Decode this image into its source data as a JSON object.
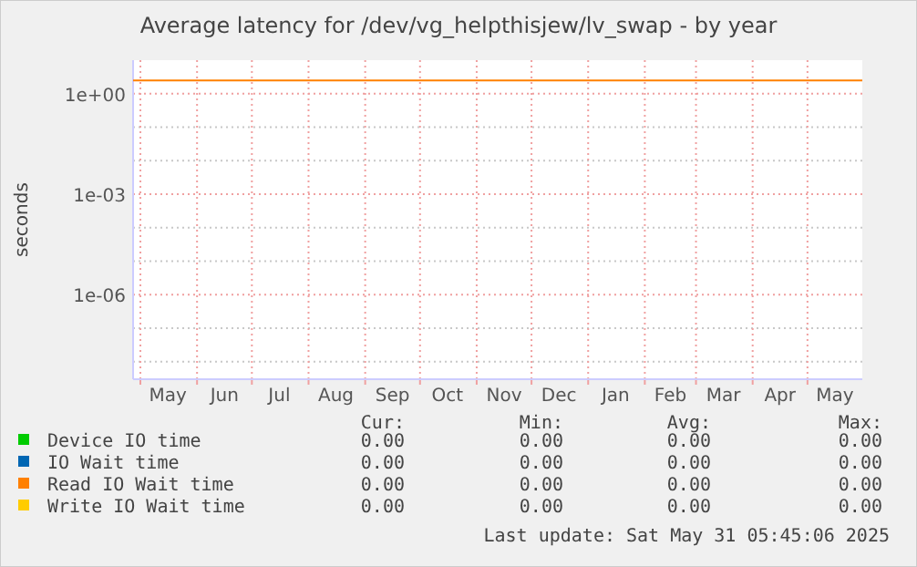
{
  "chart_data": {
    "type": "line",
    "title": "Average latency for /dev/vg_helpthisjew/lv_swap - by year",
    "ylabel": "seconds",
    "log": "y",
    "grid": true,
    "legend": "bottom",
    "x": [
      "2024-04-27",
      "2025-05-31"
    ],
    "xlim": [
      "2024-04-27",
      "2025-05-31"
    ],
    "xticks": [
      {
        "value": "2024-05-01",
        "label": null
      },
      {
        "value": "2024-05-16",
        "label": "May"
      },
      {
        "value": "2024-06-01",
        "label": null
      },
      {
        "value": "2024-06-16",
        "label": "Jun"
      },
      {
        "value": "2024-07-01",
        "label": null
      },
      {
        "value": "2024-07-16",
        "label": "Jul"
      },
      {
        "value": "2024-08-01",
        "label": null
      },
      {
        "value": "2024-08-16",
        "label": "Aug"
      },
      {
        "value": "2024-09-01",
        "label": null
      },
      {
        "value": "2024-09-16",
        "label": "Sep"
      },
      {
        "value": "2024-10-01",
        "label": null
      },
      {
        "value": "2024-10-16",
        "label": "Oct"
      },
      {
        "value": "2024-11-01",
        "label": null
      },
      {
        "value": "2024-11-16",
        "label": "Nov"
      },
      {
        "value": "2024-12-01",
        "label": null
      },
      {
        "value": "2024-12-16",
        "label": "Dec"
      },
      {
        "value": "2025-01-01",
        "label": null
      },
      {
        "value": "2025-01-16",
        "label": "Jan"
      },
      {
        "value": "2025-02-01",
        "label": null
      },
      {
        "value": "2025-02-15",
        "label": "Feb"
      },
      {
        "value": "2025-03-01",
        "label": null
      },
      {
        "value": "2025-03-16",
        "label": "Mar"
      },
      {
        "value": "2025-04-01",
        "label": null
      },
      {
        "value": "2025-04-16",
        "label": "Apr"
      },
      {
        "value": "2025-05-01",
        "label": null
      },
      {
        "value": "2025-05-16",
        "label": "May"
      }
    ],
    "ylim": [
      3e-09,
      10
    ],
    "yticks": [
      {
        "value": 1,
        "label": "1e+00"
      },
      {
        "value": 0.1,
        "label": null
      },
      {
        "value": 0.01,
        "label": null
      },
      {
        "value": 0.001,
        "label": "1e-03"
      },
      {
        "value": 0.0001,
        "label": null
      },
      {
        "value": 1e-05,
        "label": null
      },
      {
        "value": 1e-06,
        "label": "1e-06"
      },
      {
        "value": 1e-07,
        "label": null
      },
      {
        "value": 1e-08,
        "label": null
      }
    ],
    "series": [
      {
        "name": "Device IO time",
        "color": "#00cc00",
        "values": [
          null,
          null
        ]
      },
      {
        "name": "IO Wait time",
        "color": "#0066b3",
        "values": [
          null,
          null
        ]
      },
      {
        "name": "Read IO Wait time",
        "color": "#ff8000",
        "values": [
          2.5,
          2.5
        ]
      },
      {
        "name": "Write IO Wait time",
        "color": "#ffcc00",
        "values": [
          null,
          null
        ]
      }
    ],
    "annotations": [
      "Cur:",
      "Min:",
      "Avg:",
      "Max:",
      "0.00",
      "0.00",
      "0.00",
      "0.00",
      "0.00",
      "0.00",
      "0.00",
      "0.00",
      "0.00",
      "0.00",
      "0.00",
      "0.00",
      "0.00",
      "0.00",
      "0.00",
      "0.00",
      "Last update: Sat May 31 05:45:06 2025"
    ]
  }
}
